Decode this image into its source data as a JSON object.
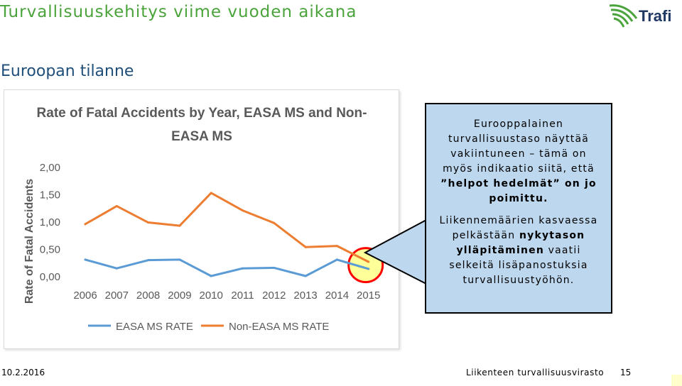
{
  "header": {
    "title": "Turvallisuuskehitys viime vuoden aikana",
    "subtitle": "Euroopan tilanne",
    "logo_text": "Trafi"
  },
  "callout": {
    "line1": "Eurooppalainen",
    "line2": "turvallisuustaso näyttää",
    "line3": "vakiintuneen – tämä on",
    "line4": "myös indikaatio siitä, että",
    "line5": "”helpot hedelmät” on jo",
    "line6": "poimittu.",
    "line7": "Liikennemäärien kasvaessa",
    "line8a": "pelkästään",
    "line8b": "nykytason",
    "line9a": "ylläpitäminen",
    "line9b": "vaatii",
    "line10": "selkeitä lisäpanostuksia",
    "line11": "turvallisuustyöhön."
  },
  "footer": {
    "date": "10.2.2016",
    "organization": "Liikenteen turvallisuusvirasto",
    "page": "15"
  },
  "chart_data": {
    "type": "line",
    "title_line1": "Rate of Fatal Accidents by Year, EASA MS and Non-",
    "title_line2": "EASA MS",
    "ylabel": "Rate of Fatal Accidents",
    "xlabel": "",
    "categories": [
      "2006",
      "2007",
      "2008",
      "2009",
      "2010",
      "2011",
      "2012",
      "2013",
      "2014",
      "2015"
    ],
    "ytick_labels": [
      "0,00",
      "0,50",
      "1,00",
      "1,50",
      "2,00"
    ],
    "ylim": [
      0,
      2
    ],
    "grid": false,
    "legend_position": "bottom",
    "series": [
      {
        "name": "EASA MS RATE",
        "color": "#5b9bd5",
        "values": [
          0.3,
          0.14,
          0.29,
          0.3,
          0.0,
          0.14,
          0.15,
          0.0,
          0.3,
          0.13
        ]
      },
      {
        "name": "Non-EASA MS RATE",
        "color": "#ed7d31",
        "values": [
          0.95,
          1.28,
          0.98,
          0.92,
          1.52,
          1.2,
          0.97,
          0.53,
          0.55,
          0.26
        ]
      }
    ],
    "highlight_category": "2015",
    "highlight_fill": "#ffff99",
    "highlight_stroke": "#ff0000"
  }
}
